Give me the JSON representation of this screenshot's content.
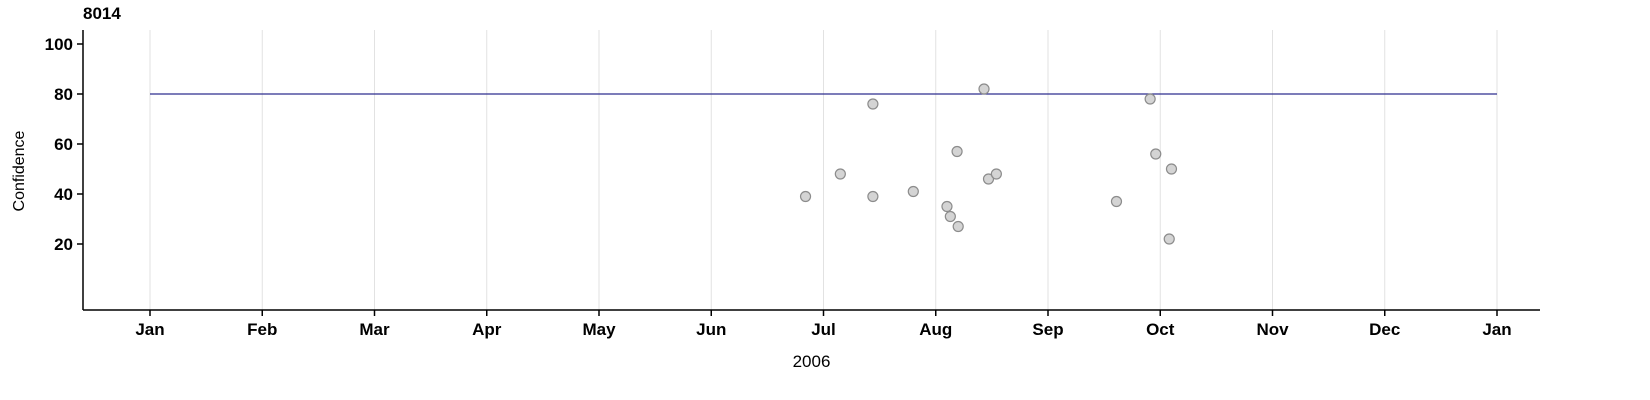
{
  "chart_data": {
    "type": "scatter",
    "title": "8014",
    "xlabel": "2006",
    "ylabel": "Confidence",
    "ylim": [
      -6,
      106
    ],
    "yticks": [
      20,
      40,
      60,
      80,
      100
    ],
    "xticks": [
      "Jan",
      "Feb",
      "Mar",
      "Apr",
      "May",
      "Jun",
      "Jul",
      "Aug",
      "Sep",
      "Oct",
      "Nov",
      "Dec",
      "Jan"
    ],
    "legend": null,
    "grid": "vertical-only",
    "grid_color": "#e2e2e2",
    "axis_color": "#000000",
    "point_color": "#cccccc",
    "point_border": "#8c8c8c",
    "reference_line": {
      "y": 80,
      "color": "#2e2e8f"
    },
    "points": [
      {
        "x": 5.84,
        "y": 39
      },
      {
        "x": 6.15,
        "y": 48
      },
      {
        "x": 6.44,
        "y": 76
      },
      {
        "x": 6.44,
        "y": 39
      },
      {
        "x": 6.8,
        "y": 41
      },
      {
        "x": 7.1,
        "y": 35
      },
      {
        "x": 7.13,
        "y": 31
      },
      {
        "x": 7.19,
        "y": 57
      },
      {
        "x": 7.2,
        "y": 27
      },
      {
        "x": 7.43,
        "y": 82
      },
      {
        "x": 7.47,
        "y": 46
      },
      {
        "x": 7.54,
        "y": 48
      },
      {
        "x": 8.61,
        "y": 37
      },
      {
        "x": 8.91,
        "y": 78
      },
      {
        "x": 8.96,
        "y": 56
      },
      {
        "x": 9.08,
        "y": 22
      },
      {
        "x": 9.1,
        "y": 50
      }
    ]
  }
}
